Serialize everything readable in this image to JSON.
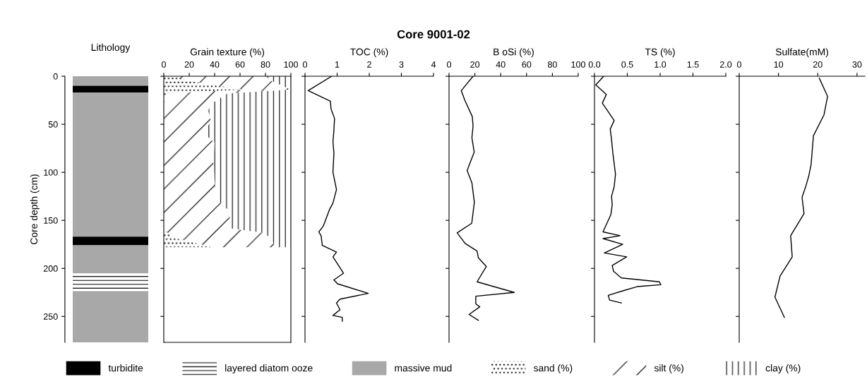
{
  "chart_data": [
    {
      "type": "other",
      "title": "Core 9001-02"
    },
    {
      "type": "bar",
      "title": "Lithology",
      "ylabel": "Core depth (cm)",
      "stacked": true,
      "categories": [
        null
      ],
      "ylim": [
        277,
        0
      ],
      "yticks": [
        0,
        50,
        100,
        150,
        200,
        250
      ],
      "tick_labels": "y",
      "legend": "bottom",
      "series": [
        {
          "color": "#a8a8a8",
          "values": [
            10
          ]
        },
        {
          "name": "turbidite",
          "color": "#000000",
          "values": [
            7
          ]
        },
        {
          "color": "#a8a8a8",
          "values": [
            150
          ]
        },
        {
          "color": "#000000",
          "values": [
            9
          ]
        },
        {
          "color": "#a8a8a8",
          "values": [
            29
          ]
        },
        {
          "name": "layered diatom ooze",
          "color": "#ffffff",
          "values": [
            20
          ]
        },
        {
          "name": "massive mud",
          "color": "#a8a8a8",
          "values": [
            52
          ]
        }
      ]
    },
    {
      "type": "area",
      "title": "Grain texture (%)",
      "stacked": true,
      "orientation": "horizontal",
      "xlim": [
        0,
        100
      ],
      "xticks": [
        0,
        20,
        40,
        60,
        80,
        100
      ],
      "ylim": [
        277,
        0
      ],
      "yticks": [
        0,
        50,
        100,
        150,
        200,
        250
      ],
      "tick_labels": "x",
      "legend": "bottom",
      "x": [
        0,
        5,
        14,
        18,
        29,
        36,
        46,
        60,
        69,
        88,
        107,
        127,
        141,
        150,
        158,
        161,
        163,
        168,
        178
      ],
      "series": [
        {
          "name": "sand (%)",
          "color": "#ffffff",
          "values": [
            10,
            20,
            63,
            2,
            0,
            0,
            0,
            0,
            0,
            0,
            0,
            0,
            0,
            0,
            0,
            1,
            3,
            8,
            38
          ]
        },
        {
          "name": "silt (%)",
          "color": "#ffffff",
          "values": [
            70,
            65,
            37,
            48,
            37,
            35,
            37,
            32,
            40,
            39,
            40,
            41,
            52,
            52,
            50,
            66,
            75,
            76,
            50
          ]
        },
        {
          "name": "clay (%)",
          "color": "#ffffff",
          "values": [
            20,
            15,
            0,
            50,
            63,
            65,
            63,
            68,
            60,
            61,
            60,
            59,
            48,
            48,
            50,
            33,
            22,
            16,
            12
          ]
        }
      ]
    },
    {
      "type": "line",
      "title": "TOC (%)",
      "orientation": "horizontal",
      "xlim": [
        0,
        4
      ],
      "xticks": [
        0,
        1,
        2,
        3,
        4
      ],
      "ylim": [
        277,
        0
      ],
      "yticks": [
        0,
        50,
        100,
        150,
        200,
        250
      ],
      "tick_labels": "x",
      "series": [
        {
          "color": "#000000",
          "x": [
            0,
            15,
            26,
            34,
            44,
            56,
            68,
            80,
            100,
            118,
            132,
            139,
            156,
            162,
            166,
            176,
            183,
            188,
            205,
            212,
            216,
            226,
            232,
            236,
            243,
            249,
            251,
            255
          ],
          "values": [
            0.83,
            0.1,
            0.79,
            0.81,
            0.92,
            0.9,
            0.87,
            0.9,
            0.87,
            0.98,
            0.87,
            0.76,
            0.57,
            0.43,
            0.5,
            0.54,
            0.98,
            0.87,
            1.2,
            0.9,
            1.01,
            1.97,
            1.09,
            0.98,
            1.09,
            0.87,
            1.16,
            1.16
          ]
        }
      ]
    },
    {
      "type": "line",
      "title": "B oSi (%)",
      "orientation": "horizontal",
      "xlim": [
        0,
        100
      ],
      "xticks": [
        0,
        20,
        40,
        60,
        80,
        100
      ],
      "ylim": [
        277,
        0
      ],
      "yticks": [
        0,
        50,
        100,
        150,
        200,
        250
      ],
      "tick_labels": "x",
      "series": [
        {
          "color": "#000000",
          "x": [
            0,
            15,
            25,
            42,
            52,
            64,
            79,
            98,
            111,
            131,
            153,
            163,
            174,
            182,
            189,
            198,
            214,
            225,
            229,
            237,
            240,
            248,
            254
          ],
          "values": [
            18.6,
            9.5,
            12.2,
            18,
            18.6,
            17.7,
            19.5,
            14,
            17.7,
            19.6,
            17.6,
            6.3,
            12.5,
            21.7,
            22.7,
            28.9,
            21.7,
            50.5,
            20.7,
            20.7,
            23.8,
            15.5,
            22.7
          ]
        }
      ]
    },
    {
      "type": "line",
      "title": "TS (%)",
      "orientation": "horizontal",
      "xlim": [
        0,
        2
      ],
      "xticks": [
        {
          "value": 0,
          "label": "0.0"
        },
        0.5,
        {
          "value": 1,
          "label": "1.0"
        },
        1.5,
        {
          "value": 2,
          "label": "2.0"
        }
      ],
      "ylim": [
        277,
        0
      ],
      "yticks": [
        0,
        50,
        100,
        150,
        200,
        250
      ],
      "tick_labels": "x",
      "series": [
        {
          "color": "#000000",
          "x": [
            0,
            9,
            19,
            28,
            46,
            55,
            66,
            80,
            102,
            115,
            125,
            134,
            144,
            162,
            166,
            169,
            175,
            184,
            188,
            197,
            203,
            210,
            214,
            217,
            219,
            223,
            228,
            233,
            236
          ],
          "values": [
            0.14,
            0.02,
            0.18,
            0.12,
            0.3,
            0.24,
            0.26,
            0.28,
            0.32,
            0.3,
            0.26,
            0.27,
            0.25,
            0.13,
            0.39,
            0.13,
            0.43,
            0.15,
            0.49,
            0.27,
            0.29,
            0.41,
            0.99,
            1.01,
            0.65,
            0.45,
            0.21,
            0.23,
            0.41
          ]
        }
      ]
    },
    {
      "type": "line",
      "title": "Sulfate(mM)",
      "orientation": "horizontal",
      "xlim": [
        0,
        32
      ],
      "xticks": [
        0,
        10,
        20,
        30
      ],
      "ylim": [
        277,
        0
      ],
      "yticks": [
        0,
        50,
        100,
        150,
        200,
        250
      ],
      "tick_labels": "x",
      "series": [
        {
          "color": "#000000",
          "x": [
            2,
            21,
            40,
            62,
            92,
            104,
            114,
            126,
            143,
            166,
            188,
            208,
            230,
            251
          ],
          "values": [
            20.4,
            22.5,
            21.6,
            18.9,
            18.3,
            17.7,
            17.0,
            16.0,
            16.5,
            13.1,
            13.5,
            10.4,
            9.1,
            11.5
          ]
        }
      ]
    }
  ]
}
